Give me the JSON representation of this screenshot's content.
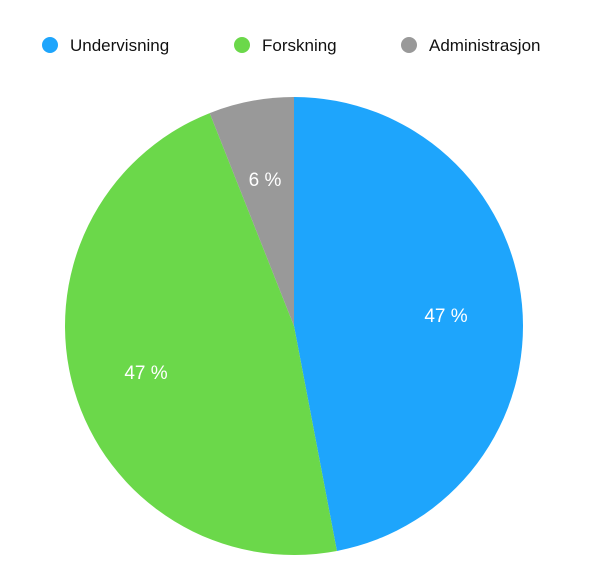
{
  "chart_data": {
    "type": "pie",
    "title": "",
    "legend_position": "top",
    "start": "top, clockwise",
    "slices": [
      {
        "name": "Undervisning",
        "value": 47,
        "label": "47 %",
        "color": "#1ea5fc"
      },
      {
        "name": "Forskning",
        "value": 47,
        "label": "47 %",
        "color": "#6bd84a"
      },
      {
        "name": "Administrasjon",
        "value": 6,
        "label": "6 %",
        "color": "#999999"
      }
    ]
  }
}
